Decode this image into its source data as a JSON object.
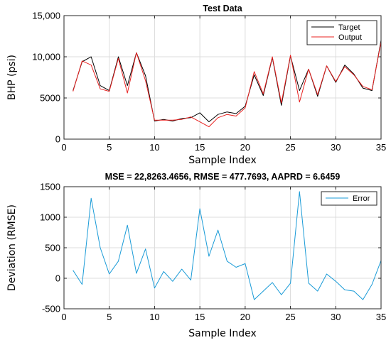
{
  "chart_data": [
    {
      "type": "line",
      "title": "Test Data",
      "xlabel": "Sample Index",
      "ylabel": "BHP (psi)",
      "xlim": [
        0,
        35
      ],
      "ylim": [
        0,
        15000
      ],
      "xticks": [
        0,
        5,
        10,
        15,
        20,
        25,
        30,
        35
      ],
      "yticks": [
        0,
        5000,
        10000,
        15000
      ],
      "ytick_labels": [
        "0",
        "5000",
        "10,000",
        "15,000"
      ],
      "grid": true,
      "legend_position": "top-right",
      "x": [
        1,
        2,
        3,
        4,
        5,
        6,
        7,
        8,
        9,
        10,
        11,
        12,
        13,
        14,
        15,
        16,
        17,
        18,
        19,
        20,
        21,
        22,
        23,
        24,
        25,
        26,
        27,
        28,
        29,
        30,
        31,
        32,
        33,
        34,
        35
      ],
      "series": [
        {
          "name": "Target",
          "color": "#000000",
          "values": [
            5900,
            9400,
            10000,
            6500,
            5900,
            10000,
            6500,
            10500,
            7700,
            2200,
            2400,
            2200,
            2500,
            2600,
            3200,
            2100,
            3000,
            3300,
            3100,
            4000,
            7800,
            5300,
            9900,
            4100,
            10100,
            5900,
            8500,
            5200,
            8900,
            6900,
            9000,
            7900,
            6200,
            5900,
            12000
          ]
        },
        {
          "name": "Output",
          "color": "#e8201f",
          "values": [
            5800,
            9500,
            9000,
            6100,
            5800,
            9800,
            5600,
            10500,
            7100,
            2300,
            2300,
            2300,
            2400,
            2700,
            2100,
            1500,
            2600,
            3000,
            2800,
            3800,
            8200,
            5500,
            10000,
            4400,
            10200,
            4500,
            8500,
            5400,
            8900,
            7000,
            8800,
            7800,
            6400,
            6000,
            11800
          ]
        }
      ]
    },
    {
      "type": "line",
      "title": "MSE = 22,8263.4656, RMSE = 477.7693, AAPRD = 6.6459",
      "xlabel": "Sample Index",
      "ylabel": "Deviation (RMSE)",
      "xlim": [
        0,
        35
      ],
      "ylim": [
        -500,
        1500
      ],
      "xticks": [
        0,
        5,
        10,
        15,
        20,
        25,
        30,
        35
      ],
      "yticks": [
        -500,
        0,
        500,
        1000,
        1500
      ],
      "ytick_labels": [
        "-500",
        "0",
        "500",
        "1000",
        "1500"
      ],
      "grid": true,
      "legend_position": "top-right",
      "x": [
        1,
        2,
        3,
        4,
        5,
        6,
        7,
        8,
        9,
        10,
        11,
        12,
        13,
        14,
        15,
        16,
        17,
        18,
        19,
        20,
        21,
        22,
        23,
        24,
        25,
        26,
        27,
        28,
        29,
        30,
        31,
        32,
        33,
        34,
        35
      ],
      "series": [
        {
          "name": "Error",
          "color": "#1a9bd7",
          "values": [
            130,
            -100,
            1310,
            500,
            70,
            280,
            870,
            80,
            480,
            -160,
            110,
            -50,
            150,
            -30,
            1140,
            360,
            790,
            280,
            180,
            240,
            -350,
            -210,
            -70,
            -270,
            -80,
            1420,
            -80,
            -210,
            70,
            -50,
            -190,
            -210,
            -350,
            -100,
            290
          ]
        }
      ]
    }
  ]
}
